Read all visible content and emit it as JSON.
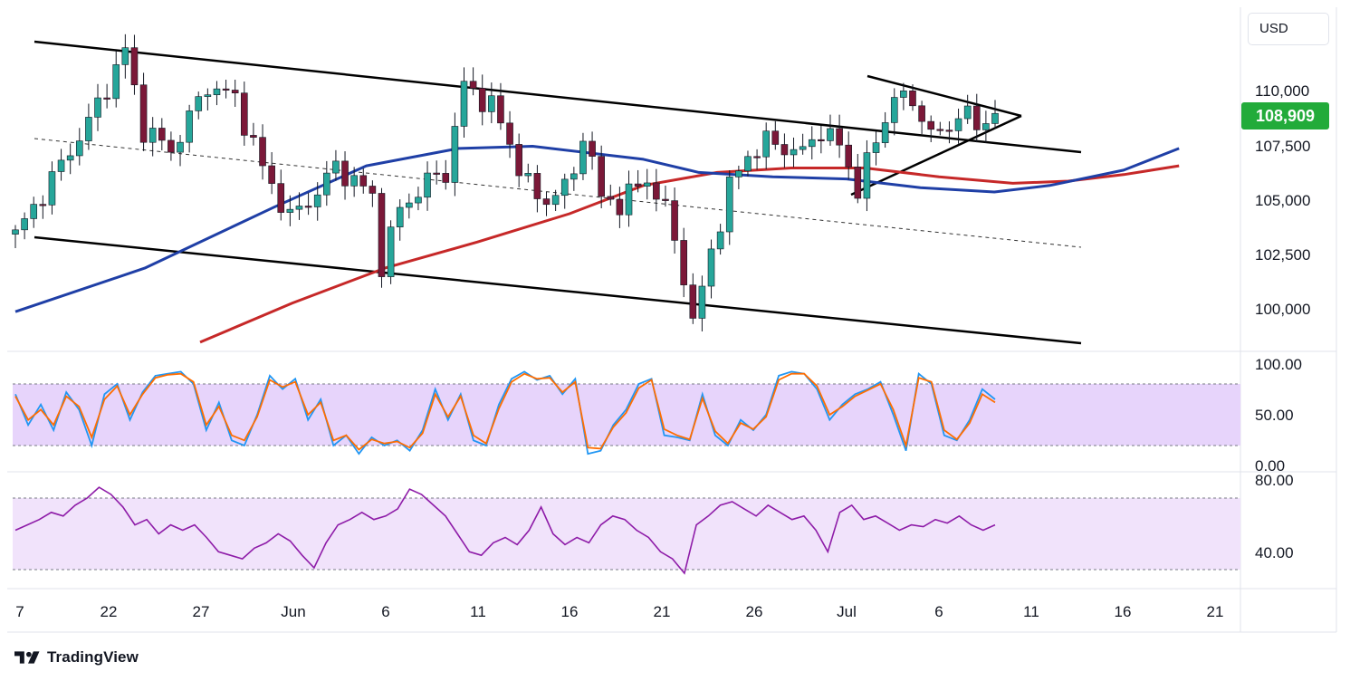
{
  "header": {
    "currency": "USD",
    "last_price_label": "108,909"
  },
  "brand": {
    "name": "TradingView"
  },
  "colors": {
    "up_candle": "#26a69a",
    "down_candle": "#7b1838",
    "wick": "#131722",
    "sma_fast": "#1f3fa6",
    "sma_slow": "#c62828",
    "stoch_k": "#2196f3",
    "stoch_d": "#ff6d00",
    "stoch_band": "#e7d4fb",
    "rsi_line": "#8e1ca8",
    "rsi_band": "#f1e3fb",
    "last_price": "#22ab3a"
  },
  "chart_data": [
    {
      "type": "candlestick",
      "panel": "price",
      "y_axis_ticks": [
        "110,000",
        "107,500",
        "105,000",
        "102,500",
        "100,000"
      ],
      "ylim": [
        98400,
        112500
      ],
      "x_axis_ticks": [
        "7",
        "22",
        "27",
        "Jun",
        "6",
        "11",
        "16",
        "21",
        "26",
        "Jul",
        "6",
        "11",
        "16",
        "21"
      ],
      "last_price": 108909,
      "trend_anchors": [
        {
          "i": 0,
          "p": 103300
        },
        {
          "i": 8,
          "p": 108500
        },
        {
          "i": 12,
          "p": 111800
        },
        {
          "i": 14,
          "p": 108200
        },
        {
          "i": 17,
          "p": 107200
        },
        {
          "i": 21,
          "p": 110200
        },
        {
          "i": 24,
          "p": 109600
        },
        {
          "i": 27,
          "p": 106400
        },
        {
          "i": 30,
          "p": 104100
        },
        {
          "i": 33,
          "p": 105300
        },
        {
          "i": 35,
          "p": 106500
        },
        {
          "i": 37,
          "p": 105800
        },
        {
          "i": 39,
          "p": 105100
        },
        {
          "i": 40,
          "p": 102000
        },
        {
          "i": 42,
          "p": 104500
        },
        {
          "i": 45,
          "p": 105800
        },
        {
          "i": 47,
          "p": 106200
        },
        {
          "i": 49,
          "p": 110200
        },
        {
          "i": 52,
          "p": 109300
        },
        {
          "i": 54,
          "p": 107500
        },
        {
          "i": 55,
          "p": 106500
        },
        {
          "i": 57,
          "p": 104900
        },
        {
          "i": 59,
          "p": 105200
        },
        {
          "i": 61,
          "p": 106000
        },
        {
          "i": 62,
          "p": 108200
        },
        {
          "i": 64,
          "p": 105000
        },
        {
          "i": 66,
          "p": 104800
        },
        {
          "i": 69,
          "p": 105900
        },
        {
          "i": 71,
          "p": 104500
        },
        {
          "i": 73,
          "p": 101500
        },
        {
          "i": 74,
          "p": 99300
        },
        {
          "i": 75,
          "p": 100800
        },
        {
          "i": 76,
          "p": 102600
        },
        {
          "i": 78,
          "p": 105500
        },
        {
          "i": 80,
          "p": 107000
        },
        {
          "i": 82,
          "p": 107600
        },
        {
          "i": 86,
          "p": 107100
        },
        {
          "i": 88,
          "p": 108200
        },
        {
          "i": 90,
          "p": 107400
        },
        {
          "i": 92,
          "p": 105500
        },
        {
          "i": 94,
          "p": 107600
        },
        {
          "i": 96,
          "p": 109800
        },
        {
          "i": 99,
          "p": 109000
        },
        {
          "i": 100,
          "p": 107900
        },
        {
          "i": 102,
          "p": 108100
        },
        {
          "i": 103,
          "p": 109200
        },
        {
          "i": 105,
          "p": 108200
        },
        {
          "i": 107,
          "p": 108909
        }
      ],
      "sma_fast": [
        {
          "x": "May 7",
          "y": 99800
        },
        {
          "x": "May 14",
          "y": 101800
        },
        {
          "x": "May 21",
          "y": 104600
        },
        {
          "x": "May 26",
          "y": 106500
        },
        {
          "x": "May 31",
          "y": 107300
        },
        {
          "x": "Jun 4",
          "y": 107400
        },
        {
          "x": "Jun 8",
          "y": 107000
        },
        {
          "x": "Jun 10",
          "y": 106800
        },
        {
          "x": "Jun 13",
          "y": 106200
        },
        {
          "x": "Jun 17",
          "y": 106000
        },
        {
          "x": "Jun 21",
          "y": 105900
        },
        {
          "x": "Jun 25",
          "y": 105500
        },
        {
          "x": "Jun 29",
          "y": 105300
        },
        {
          "x": "Jul 2",
          "y": 105600
        },
        {
          "x": "Jul 6",
          "y": 106300
        },
        {
          "x": "Jul 9",
          "y": 107300
        }
      ],
      "sma_slow": [
        {
          "x": "May 17",
          "y": 98400
        },
        {
          "x": "May 22",
          "y": 100200
        },
        {
          "x": "May 27",
          "y": 101800
        },
        {
          "x": "Jun 1",
          "y": 103000
        },
        {
          "x": "Jun 6",
          "y": 104300
        },
        {
          "x": "Jun 10",
          "y": 105600
        },
        {
          "x": "Jun 14",
          "y": 106200
        },
        {
          "x": "Jun 18",
          "y": 106400
        },
        {
          "x": "Jun 22",
          "y": 106400
        },
        {
          "x": "Jun 26",
          "y": 106000
        },
        {
          "x": "Jun 30",
          "y": 105700
        },
        {
          "x": "Jul 3",
          "y": 105800
        },
        {
          "x": "Jul 6",
          "y": 106100
        },
        {
          "x": "Jul 9",
          "y": 106500
        }
      ]
    },
    {
      "type": "line",
      "panel": "stochastic",
      "y_axis_ticks": [
        "100.00",
        "50.00",
        "0.00"
      ],
      "ylim": [
        0,
        100
      ],
      "band": [
        20,
        80
      ],
      "series": [
        {
          "values": [
            70,
            40,
            60,
            35,
            72,
            55,
            20,
            70,
            80,
            45,
            72,
            88,
            90,
            92,
            80,
            35,
            62,
            25,
            20,
            50,
            88,
            75,
            85,
            45,
            65,
            20,
            30,
            12,
            28,
            20,
            25,
            15,
            35,
            75,
            45,
            70,
            25,
            20,
            60,
            85,
            92,
            84,
            88,
            70,
            85,
            12,
            15,
            40,
            55,
            80,
            85,
            30,
            28,
            25,
            70,
            30,
            20,
            45,
            35,
            50,
            88,
            92,
            90,
            75,
            45,
            60,
            70,
            75,
            82,
            50,
            15,
            90,
            80,
            30,
            25,
            45,
            75,
            65
          ]
        },
        {
          "values": [
            68,
            45,
            55,
            40,
            68,
            58,
            28,
            65,
            78,
            50,
            70,
            86,
            89,
            90,
            82,
            40,
            58,
            30,
            25,
            48,
            84,
            77,
            82,
            50,
            62,
            25,
            30,
            16,
            26,
            22,
            24,
            18,
            32,
            70,
            48,
            68,
            30,
            22,
            56,
            82,
            90,
            85,
            86,
            72,
            82,
            18,
            17,
            38,
            52,
            76,
            84,
            36,
            30,
            26,
            66,
            34,
            22,
            42,
            36,
            48,
            84,
            90,
            90,
            78,
            50,
            58,
            68,
            74,
            80,
            55,
            20,
            86,
            82,
            35,
            26,
            42,
            70,
            62
          ]
        }
      ]
    },
    {
      "type": "line",
      "panel": "rsi",
      "y_axis_ticks": [
        "80.00",
        "40.00"
      ],
      "ylim": [
        22,
        84
      ],
      "band": [
        30,
        70
      ],
      "series": [
        {
          "values": [
            52,
            55,
            58,
            62,
            60,
            66,
            70,
            76,
            72,
            65,
            55,
            58,
            50,
            55,
            52,
            55,
            48,
            40,
            38,
            36,
            42,
            45,
            50,
            46,
            38,
            31,
            45,
            55,
            58,
            62,
            58,
            60,
            64,
            75,
            72,
            66,
            60,
            50,
            40,
            38,
            45,
            48,
            44,
            52,
            65,
            50,
            44,
            48,
            45,
            55,
            60,
            58,
            52,
            48,
            40,
            36,
            28,
            55,
            60,
            66,
            68,
            64,
            60,
            66,
            62,
            58,
            60,
            52,
            40,
            62,
            66,
            58,
            60,
            56,
            52,
            55,
            54,
            58,
            56,
            60,
            55,
            52,
            55
          ]
        }
      ]
    }
  ],
  "footer_date_labels": [
    "7",
    "22",
    "27",
    "Jun",
    "6",
    "11",
    "16",
    "21",
    "26",
    "Jul",
    "6",
    "11",
    "16",
    "21"
  ]
}
